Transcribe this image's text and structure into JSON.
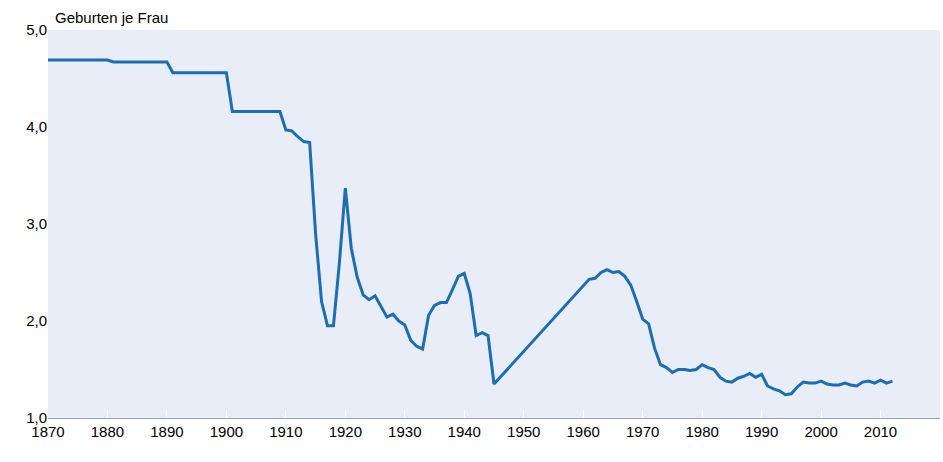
{
  "chart_data": {
    "type": "line",
    "ylabel": "Geburten je Frau",
    "color": "#1b6db4",
    "grid": false,
    "x": [
      1870,
      1871,
      1872,
      1873,
      1874,
      1875,
      1876,
      1877,
      1878,
      1879,
      1880,
      1881,
      1882,
      1883,
      1884,
      1885,
      1886,
      1887,
      1888,
      1889,
      1890,
      1891,
      1892,
      1893,
      1894,
      1895,
      1896,
      1897,
      1898,
      1899,
      1900,
      1901,
      1902,
      1903,
      1904,
      1905,
      1906,
      1907,
      1908,
      1909,
      1910,
      1911,
      1912,
      1913,
      1914,
      1915,
      1916,
      1917,
      1918,
      1919,
      1920,
      1921,
      1922,
      1923,
      1924,
      1925,
      1926,
      1927,
      1928,
      1929,
      1930,
      1931,
      1932,
      1933,
      1934,
      1935,
      1936,
      1937,
      1938,
      1939,
      1940,
      1941,
      1942,
      1943,
      1944,
      1945,
      1961,
      1962,
      1963,
      1964,
      1965,
      1966,
      1967,
      1968,
      1969,
      1970,
      1971,
      1972,
      1973,
      1974,
      1975,
      1976,
      1977,
      1978,
      1979,
      1980,
      1981,
      1982,
      1983,
      1984,
      1985,
      1986,
      1987,
      1988,
      1989,
      1990,
      1991,
      1992,
      1993,
      1994,
      1995,
      1996,
      1997,
      1998,
      1999,
      2000,
      2001,
      2002,
      2003,
      2004,
      2005,
      2006,
      2007,
      2008,
      2009,
      2010,
      2011,
      2012
    ],
    "values": [
      4.69,
      4.69,
      4.69,
      4.69,
      4.69,
      4.69,
      4.69,
      4.69,
      4.69,
      4.69,
      4.69,
      4.67,
      4.67,
      4.67,
      4.67,
      4.67,
      4.67,
      4.67,
      4.67,
      4.67,
      4.67,
      4.56,
      4.56,
      4.56,
      4.56,
      4.56,
      4.56,
      4.56,
      4.56,
      4.56,
      4.56,
      4.16,
      4.16,
      4.16,
      4.16,
      4.16,
      4.16,
      4.16,
      4.16,
      4.16,
      3.97,
      3.96,
      3.9,
      3.85,
      3.84,
      2.9,
      2.2,
      1.95,
      1.95,
      2.6,
      3.37,
      2.75,
      2.45,
      2.27,
      2.22,
      2.26,
      2.15,
      2.04,
      2.07,
      2.0,
      1.96,
      1.8,
      1.74,
      1.71,
      2.06,
      2.16,
      2.19,
      2.19,
      2.32,
      2.46,
      2.49,
      2.28,
      1.85,
      1.88,
      1.85,
      1.35,
      2.43,
      2.44,
      2.5,
      2.53,
      2.5,
      2.51,
      2.46,
      2.37,
      2.2,
      2.02,
      1.97,
      1.72,
      1.55,
      1.52,
      1.47,
      1.5,
      1.5,
      1.49,
      1.5,
      1.55,
      1.52,
      1.5,
      1.42,
      1.38,
      1.37,
      1.41,
      1.43,
      1.46,
      1.42,
      1.45,
      1.33,
      1.3,
      1.28,
      1.24,
      1.25,
      1.32,
      1.37,
      1.36,
      1.36,
      1.38,
      1.35,
      1.34,
      1.34,
      1.36,
      1.34,
      1.33,
      1.37,
      1.38,
      1.36,
      1.39,
      1.36,
      1.38
    ],
    "xlim": [
      1870,
      2020
    ],
    "xticks": [
      1870,
      1880,
      1890,
      1900,
      1910,
      1920,
      1930,
      1940,
      1950,
      1960,
      1970,
      1980,
      1990,
      2000,
      2010
    ],
    "ylim": [
      1,
      5
    ],
    "yticks": [
      {
        "value": 1,
        "label": "1,0"
      },
      {
        "value": 2,
        "label": "2,0"
      },
      {
        "value": 3,
        "label": "3,0"
      },
      {
        "value": 4,
        "label": "4,0"
      },
      {
        "value": 5,
        "label": "5,0"
      }
    ]
  }
}
